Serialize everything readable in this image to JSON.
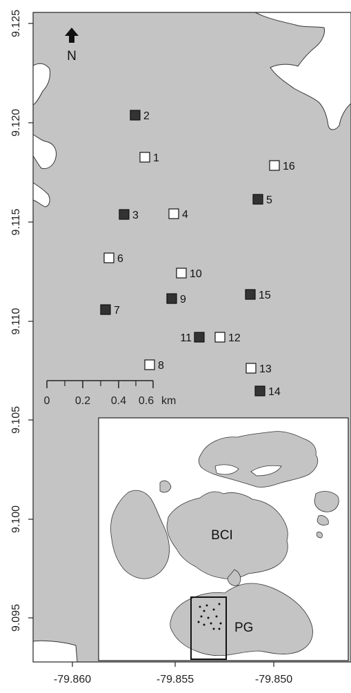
{
  "axes": {
    "x_ticks": [
      "-79.860",
      "-79.855",
      "-79.850"
    ],
    "y_ticks": [
      "9.125",
      "9.120",
      "9.115",
      "9.110",
      "9.105",
      "9.100",
      "9.095"
    ]
  },
  "north_arrow": {
    "label": "N",
    "icon": "north-arrow-icon"
  },
  "scale_bar": {
    "ticks": [
      "0",
      "0.2",
      "0.4",
      "0.6"
    ],
    "unit": "km"
  },
  "sites": [
    {
      "id": "1",
      "fill": "white"
    },
    {
      "id": "2",
      "fill": "black"
    },
    {
      "id": "3",
      "fill": "black"
    },
    {
      "id": "4",
      "fill": "white"
    },
    {
      "id": "5",
      "fill": "black"
    },
    {
      "id": "6",
      "fill": "white"
    },
    {
      "id": "7",
      "fill": "black"
    },
    {
      "id": "8",
      "fill": "white"
    },
    {
      "id": "9",
      "fill": "black"
    },
    {
      "id": "10",
      "fill": "white"
    },
    {
      "id": "11",
      "fill": "black"
    },
    {
      "id": "12",
      "fill": "white"
    },
    {
      "id": "13",
      "fill": "white"
    },
    {
      "id": "14",
      "fill": "black"
    },
    {
      "id": "15",
      "fill": "black"
    },
    {
      "id": "16",
      "fill": "white"
    }
  ],
  "inset": {
    "label_bci": "BCI",
    "label_pg": "PG"
  },
  "colors": {
    "land": "#c4c4c4",
    "water": "#ffffff",
    "site_dark": "#333333",
    "site_light": "#ffffff",
    "outline": "#222222"
  }
}
